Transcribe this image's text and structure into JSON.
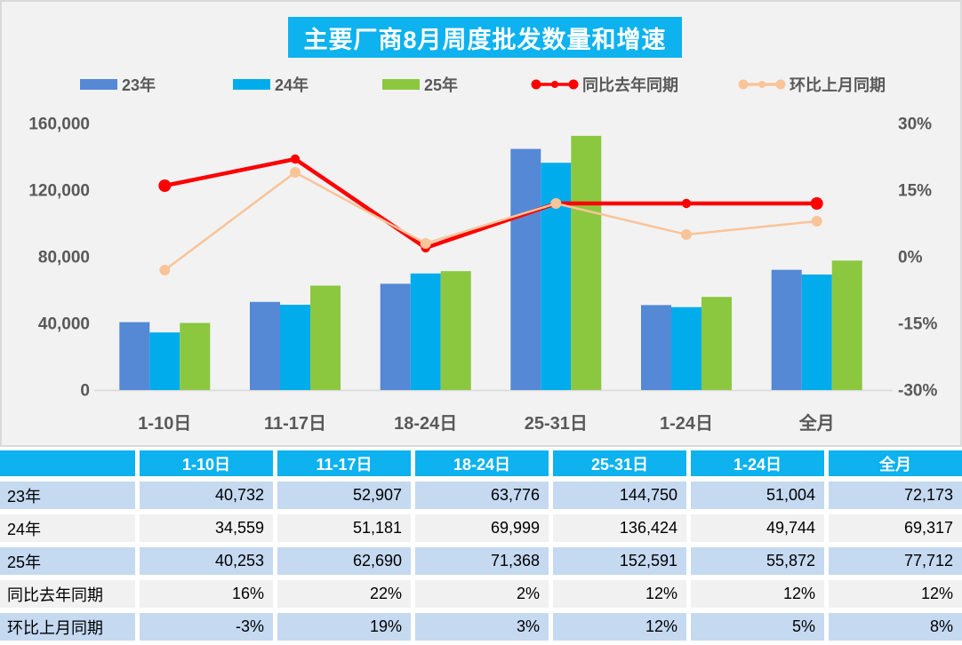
{
  "title": "主要厂商8月周度批发数量和增速",
  "colors": {
    "accent_cyan": "#0DB2EF",
    "bar_23": "#5588D5",
    "bar_24": "#00ACEC",
    "bar_25": "#8CC740",
    "line_yoy": "#FF0000",
    "line_mom": "#F9C499",
    "chart_bg": "#F2F2F2",
    "axis_text": "#595959",
    "axis_line": "#D9D9D9",
    "row_blue": "#C5D9F1",
    "row_gray": "#F1F1F1",
    "table_text": "#000000"
  },
  "chart_data": {
    "type": "bar",
    "subtype": "grouped-bars-with-lines-combo",
    "title": "主要厂商8月周度批发数量和增速",
    "categories": [
      "1-10日",
      "11-17日",
      "18-24日",
      "25-31日",
      "1-24日",
      "全月"
    ],
    "series": [
      {
        "name": "23年",
        "kind": "bar",
        "color_key": "bar_23",
        "values": [
          40732,
          52907,
          63776,
          144750,
          51004,
          72173
        ]
      },
      {
        "name": "24年",
        "kind": "bar",
        "color_key": "bar_24",
        "values": [
          34559,
          51181,
          69999,
          136424,
          49744,
          69317
        ]
      },
      {
        "name": "25年",
        "kind": "bar",
        "color_key": "bar_25",
        "values": [
          40253,
          62690,
          71368,
          152591,
          55872,
          77712
        ]
      },
      {
        "name": "同比去年同期",
        "kind": "line",
        "color_key": "line_yoy",
        "values": [
          16,
          22,
          2,
          12,
          12,
          12
        ]
      },
      {
        "name": "环比上月同期",
        "kind": "line",
        "color_key": "line_mom",
        "values": [
          -3,
          19,
          3,
          12,
          5,
          8
        ]
      }
    ],
    "left_axis": {
      "min": 0,
      "max": 160000,
      "tick_labels": [
        "160,000",
        "120,000",
        "80,000",
        "40,000",
        "0"
      ]
    },
    "right_axis": {
      "min": -30,
      "max": 30,
      "tick_labels": [
        "30%",
        "15%",
        "0%",
        "-15%",
        "-30%"
      ]
    },
    "grid": "off",
    "legend_position": "top",
    "legend": [
      {
        "label": "23年",
        "type": "bar",
        "color_key": "bar_23"
      },
      {
        "label": "24年",
        "type": "bar",
        "color_key": "bar_24"
      },
      {
        "label": "25年",
        "type": "bar",
        "color_key": "bar_25"
      },
      {
        "label": "同比去年同期",
        "type": "line",
        "color_key": "line_yoy"
      },
      {
        "label": "环比上月同期",
        "type": "line",
        "color_key": "line_mom"
      }
    ]
  },
  "table": {
    "columns": [
      "1-10日",
      "11-17日",
      "18-24日",
      "25-31日",
      "1-24日",
      "全月"
    ],
    "rows": [
      {
        "label": "23年",
        "values": [
          "40,732",
          "52,907",
          "63,776",
          "144,750",
          "51,004",
          "72,173"
        ]
      },
      {
        "label": "24年",
        "values": [
          "34,559",
          "51,181",
          "69,999",
          "136,424",
          "49,744",
          "69,317"
        ]
      },
      {
        "label": "25年",
        "values": [
          "40,253",
          "62,690",
          "71,368",
          "152,591",
          "55,872",
          "77,712"
        ]
      },
      {
        "label": "同比去年同期",
        "values": [
          "16%",
          "22%",
          "2%",
          "12%",
          "12%",
          "12%"
        ]
      },
      {
        "label": "环比上月同期",
        "values": [
          "-3%",
          "19%",
          "3%",
          "12%",
          "5%",
          "8%"
        ]
      }
    ]
  }
}
